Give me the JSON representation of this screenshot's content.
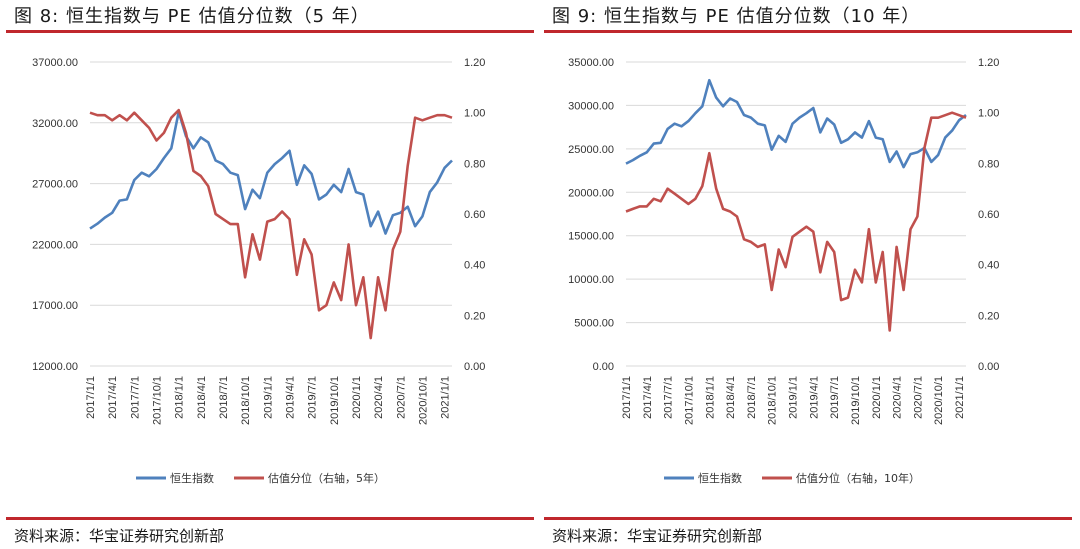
{
  "left": {
    "title": "图 8:  恒生指数与 PE 估值分位数（5 年）",
    "source": "资料来源：华宝证券研究创新部",
    "chart_data": {
      "type": "line",
      "x": [
        "2017/1/1",
        "2017/2/1",
        "2017/3/1",
        "2017/4/1",
        "2017/5/1",
        "2017/6/1",
        "2017/7/1",
        "2017/8/1",
        "2017/9/1",
        "2017/10/1",
        "2017/11/1",
        "2017/12/1",
        "2018/1/1",
        "2018/2/1",
        "2018/3/1",
        "2018/4/1",
        "2018/5/1",
        "2018/6/1",
        "2018/7/1",
        "2018/8/1",
        "2018/9/1",
        "2018/10/1",
        "2018/11/1",
        "2018/12/1",
        "2019/1/1",
        "2019/2/1",
        "2019/3/1",
        "2019/4/1",
        "2019/5/1",
        "2019/6/1",
        "2019/7/1",
        "2019/8/1",
        "2019/9/1",
        "2019/10/1",
        "2019/11/1",
        "2019/12/1",
        "2020/1/1",
        "2020/2/1",
        "2020/3/1",
        "2020/4/1",
        "2020/5/1",
        "2020/6/1",
        "2020/7/1",
        "2020/8/1",
        "2020/9/1",
        "2020/10/1",
        "2020/11/1",
        "2020/12/1",
        "2021/1/1",
        "2021/2/1"
      ],
      "x_ticks": [
        "2017/1/1",
        "2017/4/1",
        "2017/7/1",
        "2017/10/1",
        "2018/1/1",
        "2018/4/1",
        "2018/7/1",
        "2018/10/1",
        "2019/1/1",
        "2019/4/1",
        "2019/7/1",
        "2019/10/1",
        "2020/1/1",
        "2020/4/1",
        "2020/7/1",
        "2020/10/1",
        "2021/1/1"
      ],
      "y_left": {
        "min": 12000,
        "max": 37000,
        "ticks": [
          "12000.00",
          "17000.00",
          "22000.00",
          "27000.00",
          "32000.00",
          "37000.00"
        ]
      },
      "y_right": {
        "min": 0,
        "max": 1.2,
        "ticks": [
          "0.00",
          "0.20",
          "0.40",
          "0.60",
          "0.80",
          "1.00",
          "1.20"
        ]
      },
      "series": [
        {
          "name": "恒生指数",
          "axis": "left",
          "color": "#4f81bd",
          "values": [
            23300,
            23700,
            24200,
            24600,
            25600,
            25700,
            27300,
            27900,
            27600,
            28200,
            29100,
            29900,
            32900,
            30900,
            29900,
            30800,
            30400,
            28900,
            28600,
            27900,
            27700,
            24900,
            26500,
            25800,
            27900,
            28600,
            29100,
            29700,
            26900,
            28500,
            27800,
            25700,
            26100,
            26900,
            26300,
            28200,
            26300,
            26100,
            23500,
            24700,
            22900,
            24400,
            24600,
            25100,
            23500,
            24300,
            26300,
            27100,
            28300,
            28900
          ]
        },
        {
          "name": "估值分位（右轴，5年）",
          "axis": "right",
          "color": "#c0504d",
          "values": [
            1.0,
            0.99,
            0.99,
            0.97,
            0.99,
            0.97,
            1.0,
            0.97,
            0.94,
            0.89,
            0.92,
            0.98,
            1.01,
            0.92,
            0.77,
            0.75,
            0.71,
            0.6,
            0.58,
            0.56,
            0.56,
            0.35,
            0.52,
            0.42,
            0.57,
            0.58,
            0.61,
            0.58,
            0.36,
            0.5,
            0.44,
            0.22,
            0.24,
            0.33,
            0.26,
            0.48,
            0.24,
            0.35,
            0.11,
            0.35,
            0.22,
            0.46,
            0.53,
            0.79,
            0.98,
            0.97,
            0.98,
            0.99,
            0.99,
            0.98
          ]
        }
      ],
      "legend": "bottom"
    }
  },
  "right": {
    "title": "图 9:  恒生指数与 PE 估值分位数（10 年）",
    "source": "资料来源：华宝证券研究创新部",
    "chart_data": {
      "type": "line",
      "x": [
        "2017/1/1",
        "2017/2/1",
        "2017/3/1",
        "2017/4/1",
        "2017/5/1",
        "2017/6/1",
        "2017/7/1",
        "2017/8/1",
        "2017/9/1",
        "2017/10/1",
        "2017/11/1",
        "2017/12/1",
        "2018/1/1",
        "2018/2/1",
        "2018/3/1",
        "2018/4/1",
        "2018/5/1",
        "2018/6/1",
        "2018/7/1",
        "2018/8/1",
        "2018/9/1",
        "2018/10/1",
        "2018/11/1",
        "2018/12/1",
        "2019/1/1",
        "2019/2/1",
        "2019/3/1",
        "2019/4/1",
        "2019/5/1",
        "2019/6/1",
        "2019/7/1",
        "2019/8/1",
        "2019/9/1",
        "2019/10/1",
        "2019/11/1",
        "2019/12/1",
        "2020/1/1",
        "2020/2/1",
        "2020/3/1",
        "2020/4/1",
        "2020/5/1",
        "2020/6/1",
        "2020/7/1",
        "2020/8/1",
        "2020/9/1",
        "2020/10/1",
        "2020/11/1",
        "2020/12/1",
        "2021/1/1",
        "2021/2/1"
      ],
      "x_ticks": [
        "2017/1/1",
        "2017/4/1",
        "2017/7/1",
        "2017/10/1",
        "2018/1/1",
        "2018/4/1",
        "2018/7/1",
        "2018/10/1",
        "2019/1/1",
        "2019/4/1",
        "2019/7/1",
        "2019/10/1",
        "2020/1/1",
        "2020/4/1",
        "2020/7/1",
        "2020/10/1",
        "2021/1/1"
      ],
      "y_left": {
        "min": 0,
        "max": 35000,
        "ticks": [
          "0.00",
          "5000.00",
          "10000.00",
          "15000.00",
          "20000.00",
          "25000.00",
          "30000.00",
          "35000.00"
        ]
      },
      "y_right": {
        "min": 0,
        "max": 1.2,
        "ticks": [
          "0.00",
          "0.20",
          "0.40",
          "0.60",
          "0.80",
          "1.00",
          "1.20"
        ]
      },
      "series": [
        {
          "name": "恒生指数",
          "axis": "left",
          "color": "#4f81bd",
          "values": [
            23300,
            23700,
            24200,
            24600,
            25600,
            25700,
            27300,
            27900,
            27600,
            28200,
            29100,
            29900,
            32900,
            30900,
            29900,
            30800,
            30400,
            28900,
            28600,
            27900,
            27700,
            24900,
            26500,
            25800,
            27900,
            28600,
            29100,
            29700,
            26900,
            28500,
            27800,
            25700,
            26100,
            26900,
            26300,
            28200,
            26300,
            26100,
            23500,
            24700,
            22900,
            24400,
            24600,
            25100,
            23500,
            24300,
            26300,
            27100,
            28300,
            28900
          ]
        },
        {
          "name": "估值分位（右轴，10年）",
          "axis": "right",
          "color": "#c0504d",
          "values": [
            0.61,
            0.62,
            0.63,
            0.63,
            0.66,
            0.65,
            0.7,
            0.68,
            0.66,
            0.64,
            0.66,
            0.71,
            0.84,
            0.7,
            0.62,
            0.61,
            0.59,
            0.5,
            0.49,
            0.47,
            0.48,
            0.3,
            0.46,
            0.39,
            0.51,
            0.53,
            0.55,
            0.53,
            0.37,
            0.49,
            0.45,
            0.26,
            0.27,
            0.38,
            0.33,
            0.54,
            0.33,
            0.45,
            0.14,
            0.47,
            0.3,
            0.54,
            0.59,
            0.86,
            0.98,
            0.98,
            0.99,
            1.0,
            0.99,
            0.98
          ]
        }
      ],
      "legend": "bottom"
    }
  }
}
